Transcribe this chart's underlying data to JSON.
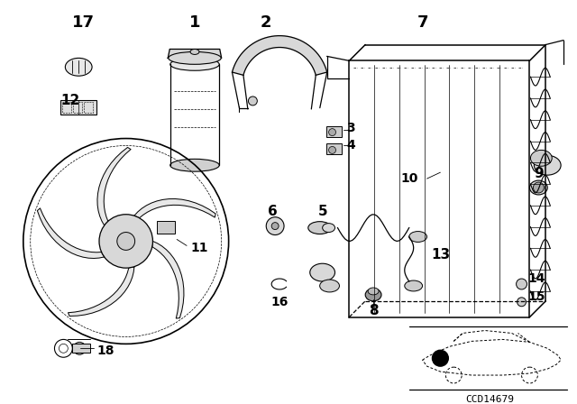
{
  "bg_color": "#ffffff",
  "line_color": "#000000",
  "diagram_code": "CCD14679",
  "fig_w": 6.4,
  "fig_h": 4.48,
  "dpi": 100
}
